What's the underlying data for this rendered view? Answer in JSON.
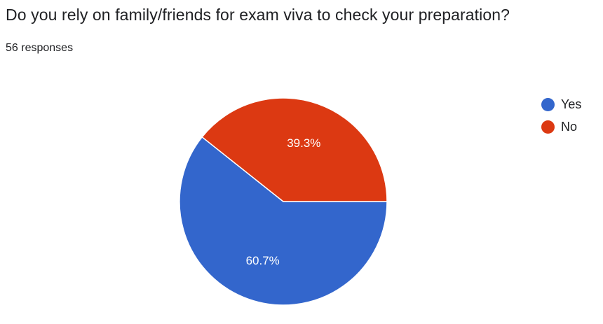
{
  "question": {
    "title": "Do you rely on family/friends for exam viva to check your preparation?",
    "responses": "56 responses"
  },
  "chart_data": {
    "type": "pie",
    "categories": [
      "Yes",
      "No"
    ],
    "values": [
      60.7,
      39.3
    ],
    "value_labels": [
      "60.7%",
      "39.3%"
    ],
    "colors": [
      "#3366cc",
      "#dc3912"
    ],
    "legend_position": "right",
    "start": "3 o'clock, clockwise"
  }
}
